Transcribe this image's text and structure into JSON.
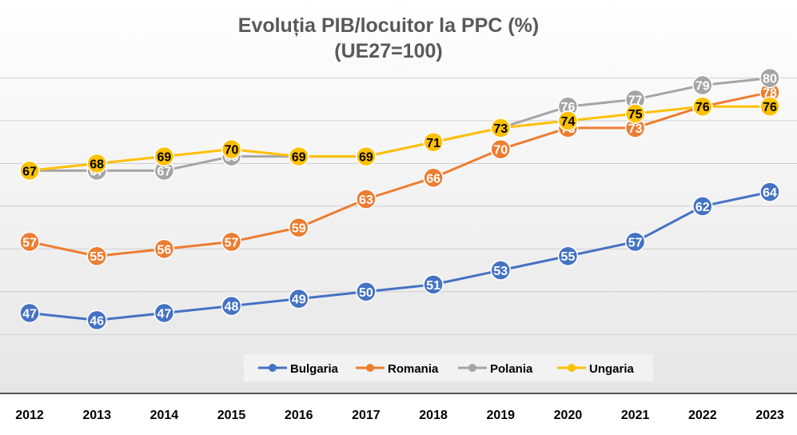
{
  "chart_data": {
    "type": "line",
    "title": "Evoluția PIB/locuitor la PPC (%)",
    "subtitle": "(UE27=100)",
    "x": [
      "2012",
      "2013",
      "2014",
      "2015",
      "2016",
      "2017",
      "2018",
      "2019",
      "2020",
      "2021",
      "2022",
      "2023"
    ],
    "ylim": [
      42,
      84
    ],
    "grid": true,
    "legend_position": "bottom",
    "series": [
      {
        "name": "Bulgaria",
        "color": "#4472C4",
        "values": [
          47,
          46,
          47,
          48,
          49,
          50,
          51,
          53,
          55,
          57,
          62,
          64
        ]
      },
      {
        "name": "Romania",
        "color": "#ED7D31",
        "values": [
          57,
          55,
          56,
          57,
          59,
          63,
          66,
          70,
          73,
          73,
          76,
          78
        ]
      },
      {
        "name": "Polania",
        "color": "#A5A5A5",
        "values": [
          67,
          67,
          67,
          69,
          69,
          69,
          71,
          73,
          76,
          77,
          79,
          80
        ]
      },
      {
        "name": "Ungaria",
        "color": "#FFC000",
        "values": [
          67,
          68,
          69,
          70,
          69,
          69,
          71,
          73,
          74,
          75,
          76,
          76
        ]
      }
    ]
  }
}
